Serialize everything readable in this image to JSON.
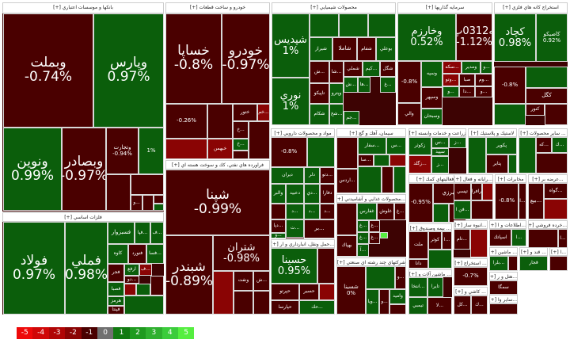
{
  "colors": {
    "neg1": "#4a0000",
    "neg2": "#8a0a0a",
    "pos1": "#0b5e0b",
    "neutral": "#707070"
  },
  "sectors": [
    {
      "title": "بانكها و موسسات اعتباري [+]",
      "tiles": [
        {
          "n": "وبملت",
          "p": "-0.74%",
          "c": -0.74
        },
        {
          "n": "وپارس",
          "p": "0.97%",
          "c": 0.97
        },
        {
          "n": "ونوين",
          "p": "0.99%",
          "c": 0.99
        },
        {
          "n": "وبصادر",
          "p": "-0.97%",
          "c": -0.97
        },
        {
          "n": "وتجارت",
          "p": "-0.94%",
          "c": -0.94
        },
        {
          "n": "",
          "p": "1%",
          "c": 1
        },
        {
          "n": "",
          "p": "",
          "c": -1
        },
        {
          "n": "",
          "p": "",
          "c": -1
        },
        {
          "n": "...و",
          "p": "",
          "c": -1
        },
        {
          "n": "",
          "p": "",
          "c": -1
        },
        {
          "n": "",
          "p": "",
          "c": -1
        },
        {
          "n": "",
          "p": "",
          "c": 1
        }
      ]
    },
    {
      "title": "فلزات اساسي [+]",
      "tiles": [
        {
          "n": "فولاد",
          "p": "0.97%",
          "c": 0.97
        },
        {
          "n": "فملي",
          "p": "0.98%",
          "c": 0.98
        },
        {
          "n": "فسبزوار",
          "p": "",
          "c": 1
        },
        {
          "n": "...فپا",
          "p": "",
          "c": 1
        },
        {
          "n": "...ف",
          "p": "",
          "c": 1
        },
        {
          "n": "كاوه",
          "p": "",
          "c": 1
        },
        {
          "n": "فنورد",
          "p": "",
          "c": -1
        },
        {
          "n": "...فسا",
          "p": "",
          "c": 1
        },
        {
          "n": "فجر",
          "p": "",
          "c": -1
        },
        {
          "n": "ارفع",
          "p": "",
          "c": 1
        },
        {
          "n": "...ف",
          "p": "",
          "c": -2
        },
        {
          "n": "...دو",
          "p": "",
          "c": -1
        },
        {
          "n": "فصبا",
          "p": "",
          "c": 1
        },
        {
          "n": "هرمز",
          "p": "",
          "c": 1
        },
        {
          "n": "فپنتا",
          "p": "",
          "c": -1
        },
        {
          "n": "",
          "p": "",
          "c": -2
        },
        {
          "n": "",
          "p": "",
          "c": 1
        },
        {
          "n": "",
          "p": "",
          "c": -1
        },
        {
          "n": "",
          "p": "",
          "c": 1
        }
      ]
    },
    {
      "title": "خودرو و ساخت قطعات [+]",
      "tiles": [
        {
          "n": "خساپا",
          "p": "-0.8%",
          "c": -0.8
        },
        {
          "n": "خودرو",
          "p": "-0.97%",
          "c": -0.97
        },
        {
          "n": "",
          "p": "-0.26%",
          "c": -0.26
        },
        {
          "n": "",
          "p": "",
          "c": -1
        },
        {
          "n": "ختور",
          "p": "",
          "c": -1
        },
        {
          "n": "...خم",
          "p": "",
          "c": -2
        },
        {
          "n": "",
          "p": "",
          "c": -2
        },
        {
          "n": "خبهمن",
          "p": "",
          "c": -2
        },
        {
          "n": "...خ",
          "p": "",
          "c": -1
        },
        {
          "n": "...خ",
          "p": "",
          "c": 1
        },
        {
          "n": "",
          "p": "",
          "c": -1
        },
        {
          "n": "",
          "p": "",
          "c": -1
        }
      ]
    },
    {
      "title": "فراورده هاي نفتي، كك و سوخت هسته اي [+]",
      "tiles": [
        {
          "n": "شپنا",
          "p": "-0.99%",
          "c": -0.99
        },
        {
          "n": "شبندر",
          "p": "-0.89%",
          "c": -0.89
        },
        {
          "n": "شتران",
          "p": "-0.98%",
          "c": -0.98
        },
        {
          "n": "",
          "p": "",
          "c": -2
        },
        {
          "n": "ونفت",
          "p": "",
          "c": -1
        },
        {
          "n": "...ش",
          "p": "",
          "c": -1
        },
        {
          "n": "",
          "p": "",
          "c": -1
        },
        {
          "n": "",
          "p": "",
          "c": -1
        }
      ]
    },
    {
      "title": "محصولات شيميايي [+]",
      "tiles": [
        {
          "n": "شپديس",
          "p": "1%",
          "c": 1
        },
        {
          "n": "نوري",
          "p": "1%",
          "c": 1
        },
        {
          "n": "",
          "p": "",
          "c": 1
        },
        {
          "n": "",
          "p": "",
          "c": 1
        },
        {
          "n": "",
          "p": "",
          "c": 1
        },
        {
          "n": "شيراز",
          "p": "",
          "c": 1
        },
        {
          "n": "شاملا",
          "p": "",
          "c": -1
        },
        {
          "n": "شفام",
          "p": "",
          "c": -1
        },
        {
          "n": "بوعلي",
          "p": "",
          "c": 1
        },
        {
          "n": "...ش",
          "p": "",
          "c": -1
        },
        {
          "n": "...شا",
          "p": "",
          "c": -1
        },
        {
          "n": "شملي",
          "p": "",
          "c": -1
        },
        {
          "n": "...كيم",
          "p": "",
          "c": 1
        },
        {
          "n": "شگل",
          "p": "",
          "c": -1
        },
        {
          "n": "تاپيكو",
          "p": "",
          "c": -1
        },
        {
          "n": "وپترو",
          "p": "",
          "c": 1
        },
        {
          "n": "شكام",
          "p": "",
          "c": 1
        },
        {
          "n": "...شخ",
          "p": "",
          "c": 1
        },
        {
          "n": "...ش",
          "p": "",
          "c": 1
        },
        {
          "n": "...ها",
          "p": "",
          "c": 1
        },
        {
          "n": "...غ",
          "p": "",
          "c": 1
        },
        {
          "n": "...جم",
          "p": "",
          "c": 1
        }
      ]
    },
    {
      "title": "سرمايه گذاريها [+]",
      "tiles": [
        {
          "n": "وخارزم",
          "p": "0.52%",
          "c": 0.52
        },
        {
          "n": "سكه0312پ01",
          "p": "-1.12%",
          "c": -1.12
        },
        {
          "n": "",
          "p": "-0.8%",
          "c": -1
        },
        {
          "n": "وسپه",
          "p": "",
          "c": 1
        },
        {
          "n": "وسپهر",
          "p": "",
          "c": -1
        },
        {
          "n": "والي",
          "p": "",
          "c": -1
        },
        {
          "n": "وسبحان",
          "p": "",
          "c": 1
        },
        {
          "n": "...سكه",
          "p": "",
          "c": -2
        },
        {
          "n": "ومدير",
          "p": "",
          "c": 1
        },
        {
          "n": "...و",
          "p": "",
          "c": 1
        },
        {
          "n": "...وتو",
          "p": "",
          "c": -2
        },
        {
          "n": "صبا",
          "p": "",
          "c": -1
        },
        {
          "n": "...وم",
          "p": "",
          "c": -1
        },
        {
          "n": "...و",
          "p": "",
          "c": 1
        },
        {
          "n": "...دا",
          "p": "",
          "c": -1
        },
        {
          "n": "...و",
          "p": "",
          "c": -1
        }
      ]
    },
    {
      "title": "استخراج كانه هاي فلزي [+]",
      "tiles": [
        {
          "n": "كچاد",
          "p": "0.98%",
          "c": 0.98
        },
        {
          "n": "كاصيكو",
          "p": "0.92%",
          "c": 0.92
        },
        {
          "n": "",
          "p": "-0.8%",
          "c": -1
        },
        {
          "n": "",
          "p": "",
          "c": 1
        },
        {
          "n": "كگل",
          "p": "",
          "c": -1
        },
        {
          "n": "كنور",
          "p": "",
          "c": -1
        },
        {
          "n": "",
          "p": "",
          "c": 1
        },
        {
          "n": "",
          "p": "",
          "c": -1
        }
      ]
    },
    {
      "title": "مواد و محصولات دارويي [+]",
      "tiles": [
        {
          "n": "",
          "p": "-0.8%",
          "c": -1
        },
        {
          "n": "",
          "p": "",
          "c": 1
        },
        {
          "n": "ديران",
          "p": "",
          "c": 1
        },
        {
          "n": "دلر",
          "p": "",
          "c": 1
        },
        {
          "n": "...دتو",
          "p": "",
          "c": -1
        },
        {
          "n": "والبر",
          "p": "",
          "c": 1
        },
        {
          "n": "دعبيد",
          "p": "",
          "c": 1
        },
        {
          "n": "...دي",
          "p": "",
          "c": 1
        },
        {
          "n": "دفارا",
          "p": "",
          "c": -1
        },
        {
          "n": "",
          "p": "",
          "c": -1
        },
        {
          "n": "...د",
          "p": "",
          "c": 1
        },
        {
          "n": "...د",
          "p": "",
          "c": 1
        },
        {
          "n": "...د",
          "p": "",
          "c": -1
        },
        {
          "n": "...دپا",
          "p": "",
          "c": -1
        },
        {
          "n": "...ت",
          "p": "",
          "c": 1
        },
        {
          "n": "...و",
          "p": "",
          "c": 1
        },
        {
          "n": "...بر",
          "p": "",
          "c": -1
        }
      ]
    },
    {
      "title": "...حمل ونقل، انبارداري و ار [+]",
      "tiles": [
        {
          "n": "حسينا",
          "p": "0.95%",
          "c": 0.95
        },
        {
          "n": "",
          "p": "",
          "c": -1
        },
        {
          "n": "حپرتو",
          "p": "",
          "c": -1
        },
        {
          "n": "حسير",
          "p": "",
          "c": -1
        },
        {
          "n": "",
          "p": "",
          "c": -2
        },
        {
          "n": "حپارسا",
          "p": "",
          "c": -1
        },
        {
          "n": "...حك",
          "p": "",
          "c": 1
        }
      ]
    },
    {
      "title": "سيمان، آهك و گچ [+]",
      "tiles": [
        {
          "n": "",
          "p": "",
          "c": -1
        },
        {
          "n": "...اردس",
          "p": "",
          "c": -1
        },
        {
          "n": "...سفار",
          "p": "",
          "c": 1
        },
        {
          "n": "...س",
          "p": "",
          "c": 1
        },
        {
          "n": "...سا",
          "p": "",
          "c": -1
        },
        {
          "n": "",
          "p": "",
          "c": 1
        },
        {
          "n": "",
          "p": "",
          "c": -2
        },
        {
          "n": "",
          "p": "",
          "c": 1
        },
        {
          "n": "",
          "p": "",
          "c": -1
        },
        {
          "n": "",
          "p": "",
          "c": 1
        }
      ]
    },
    {
      "title": "...محصولات غذايي و آشاميدني [+]",
      "tiles": [
        {
          "n": "",
          "p": "",
          "c": -1
        },
        {
          "n": "بهپاك",
          "p": "",
          "c": -1
        },
        {
          "n": "غفارس",
          "p": "",
          "c": 1
        },
        {
          "n": "غلوش",
          "p": "",
          "c": -1
        },
        {
          "n": "...غ",
          "p": "",
          "c": -1
        },
        {
          "n": "...غ",
          "p": "",
          "c": 1
        },
        {
          "n": "...غ",
          "p": "",
          "c": -1
        },
        {
          "n": "...غ",
          "p": "",
          "c": 1
        },
        {
          "n": "...غ",
          "p": "",
          "c": -1
        },
        {
          "n": "...آ",
          "p": "",
          "c": 1
        },
        {
          "n": "",
          "p": "",
          "c": 5
        }
      ]
    },
    {
      "title": "شركتهاي چند رشته اي صنعتي [+]",
      "tiles": [
        {
          "n": "شسينا",
          "p": "0%",
          "c": -0.1
        },
        {
          "n": "",
          "p": "",
          "c": 1
        },
        {
          "n": "...و",
          "p": "",
          "c": -1
        },
        {
          "n": "...ويا",
          "p": "",
          "c": 1
        },
        {
          "n": "...و",
          "p": "",
          "c": -1
        },
        {
          "n": "واميد",
          "p": "",
          "c": 1
        },
        {
          "n": "",
          "p": "",
          "c": -1
        }
      ]
    },
    {
      "title": "زراعت و خدمات وابسته [+]",
      "tiles": [
        {
          "n": "زكوثر",
          "p": "",
          "c": 1
        },
        {
          "n": "...س",
          "p": "",
          "c": 1
        },
        {
          "n": "...ز",
          "p": "",
          "c": 1
        },
        {
          "n": "سپيد",
          "p": "",
          "c": 1
        },
        {
          "n": "...زگلد",
          "p": "",
          "c": -2
        },
        {
          "n": "...ز",
          "p": "",
          "c": 1
        }
      ]
    },
    {
      "title": "...فعاليتهاي كمك [+]",
      "tiles": [
        {
          "n": "",
          "p": "-0.95%",
          "c": -1
        },
        {
          "n": "البرزي",
          "p": "",
          "c": -1
        },
        {
          "n": "",
          "p": "",
          "c": 1
        },
        {
          "n": "",
          "p": "",
          "c": -1
        }
      ]
    },
    {
      "title": "... بيمه وصندوق [+]",
      "tiles": [
        {
          "n": "ملت",
          "p": "",
          "c": -1
        },
        {
          "n": "كوثر",
          "p": "",
          "c": -1
        },
        {
          "n": "...ا",
          "p": "",
          "c": -1
        },
        {
          "n": "دانا",
          "p": "",
          "c": -1
        },
        {
          "n": "",
          "p": "",
          "c": 1
        }
      ]
    },
    {
      "title": "... ماشين آلات و [+]",
      "tiles": [
        {
          "n": "...انتخا",
          "p": "",
          "c": 1
        },
        {
          "n": "تايرا",
          "p": "",
          "c": 1
        },
        {
          "n": "تيمبي",
          "p": "",
          "c": 1
        },
        {
          "n": "...لا",
          "p": "",
          "c": -1
        }
      ]
    },
    {
      "title": "لاستيك و پلاستيك [+]",
      "tiles": [
        {
          "n": "",
          "p": "",
          "c": 1
        },
        {
          "n": "پكوير",
          "p": "",
          "c": 1
        },
        {
          "n": "پتاير",
          "p": "",
          "c": -1
        },
        {
          "n": "",
          "p": "",
          "c": 1
        }
      ]
    },
    {
      "title": "... ساير محصولات [+]",
      "tiles": [
        {
          "n": "",
          "p": "",
          "c": 1
        },
        {
          "n": "...كه",
          "p": "",
          "c": -1
        },
        {
          "n": "...ك",
          "p": "",
          "c": 1
        },
        {
          "n": "",
          "p": "",
          "c": -1
        }
      ]
    },
    {
      "title": "...رايانه و فعال [+]",
      "tiles": [
        {
          "n": "تپسي",
          "p": "",
          "c": -1
        },
        {
          "n": "رافرا",
          "p": "",
          "c": -1
        },
        {
          "n": "",
          "p": "",
          "c": -2
        },
        {
          "n": "...فن ا",
          "p": "",
          "c": 1
        },
        {
          "n": "",
          "p": "",
          "c": -1
        }
      ]
    },
    {
      "title": "مخابرات [+]",
      "tiles": [
        {
          "n": "",
          "p": "-0.8%",
          "c": -1
        },
        {
          "n": "...ا",
          "p": "",
          "c": -1
        }
      ]
    },
    {
      "title": "...عرضه بر [+]",
      "tiles": [
        {
          "n": "...بيع",
          "p": "",
          "c": -1
        },
        {
          "n": "...گواه",
          "p": "",
          "c": -1
        },
        {
          "n": "",
          "p": "",
          "c": -2
        }
      ]
    },
    {
      "title": "...انبوه ساز [+]",
      "tiles": [
        {
          "n": "...تام",
          "p": "",
          "c": -1
        },
        {
          "n": "",
          "p": "",
          "c": -2
        }
      ]
    },
    {
      "title": "...اطلاعات و ا [+]",
      "tiles": [
        {
          "n": "اسپاتك",
          "p": "",
          "c": -1
        },
        {
          "n": "...ا",
          "p": "",
          "c": 1
        }
      ]
    },
    {
      "title": "...خرده فروشي [+]",
      "tiles": [
        {
          "n": "",
          "p": "",
          "c": -1
        },
        {
          "n": "...ا",
          "p": "",
          "c": -1
        }
      ]
    },
    {
      "title": "... استخراج [+]",
      "tiles": [
        {
          "n": "",
          "p": "-0.7%",
          "c": -1
        }
      ]
    },
    {
      "title": "... ماشين [+]",
      "tiles": [
        {
          "n": "...بلرا",
          "p": "",
          "c": 1
        },
        {
          "n": "",
          "p": "",
          "c": -1
        }
      ]
    },
    {
      "title": "... قند و [+]",
      "tiles": [
        {
          "n": "قجار",
          "p": "",
          "c": 1
        }
      ]
    },
    {
      "title": "...ا [+]",
      "tiles": [
        {
          "n": "",
          "p": "",
          "c": -1
        }
      ]
    },
    {
      "title": "...هتل و ر [+]",
      "tiles": [
        {
          "n": "سمگا",
          "p": "",
          "c": -1
        }
      ]
    },
    {
      "title": "... كاشي و [+]",
      "tiles": [
        {
          "n": "...كل",
          "p": "",
          "c": -1
        },
        {
          "n": "...ك",
          "p": "",
          "c": -1
        }
      ]
    },
    {
      "title": "...ساير وا [+]",
      "tiles": [
        {
          "n": "",
          "p": "",
          "c": -1
        }
      ]
    }
  ],
  "legend": [
    "-5",
    "-4",
    "-3",
    "-2",
    "-1",
    "0",
    "1",
    "2",
    "3",
    "4",
    "5"
  ],
  "legend_colors": [
    "#ee0a0a",
    "#d00808",
    "#b00606",
    "#8a0404",
    "#4a0000",
    "#707070",
    "#117a11",
    "#1f9a1f",
    "#2fb02f",
    "#3ccc3c",
    "#55ee40"
  ]
}
